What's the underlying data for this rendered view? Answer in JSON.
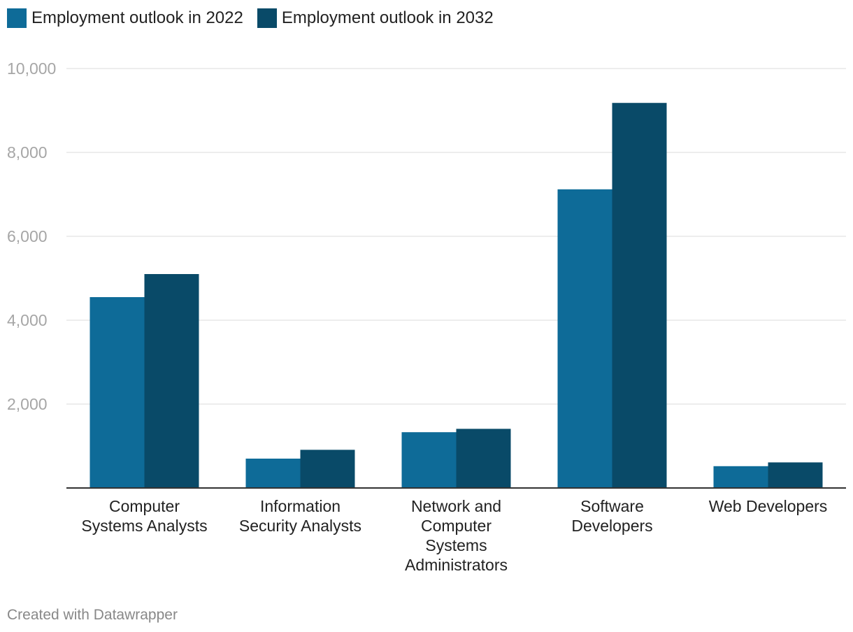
{
  "chart_data": {
    "type": "bar",
    "title": "",
    "xlabel": "",
    "ylabel": "",
    "ylim": [
      0,
      10000
    ],
    "yticks": [
      0,
      2000,
      4000,
      6000,
      8000,
      10000
    ],
    "ytick_labels": [
      "2,000",
      "4,000",
      "6,000",
      "8,000",
      "10,000"
    ],
    "categories": [
      [
        "Computer",
        "Systems Analysts"
      ],
      [
        "Information",
        "Security Analysts"
      ],
      [
        "Network and",
        "Computer",
        "Systems",
        "Administrators"
      ],
      [
        "Software",
        "Developers"
      ],
      [
        "Web Developers"
      ]
    ],
    "series": [
      {
        "name": "Employment outlook in 2022",
        "color": "#0e6b98",
        "values": [
          4550,
          700,
          1330,
          7120,
          520
        ]
      },
      {
        "name": "Employment outlook in 2032",
        "color": "#094a68",
        "values": [
          5100,
          910,
          1410,
          9180,
          610
        ]
      }
    ],
    "grid": true,
    "legend": "top-left"
  },
  "footer": {
    "credit": "Created with Datawrapper"
  }
}
